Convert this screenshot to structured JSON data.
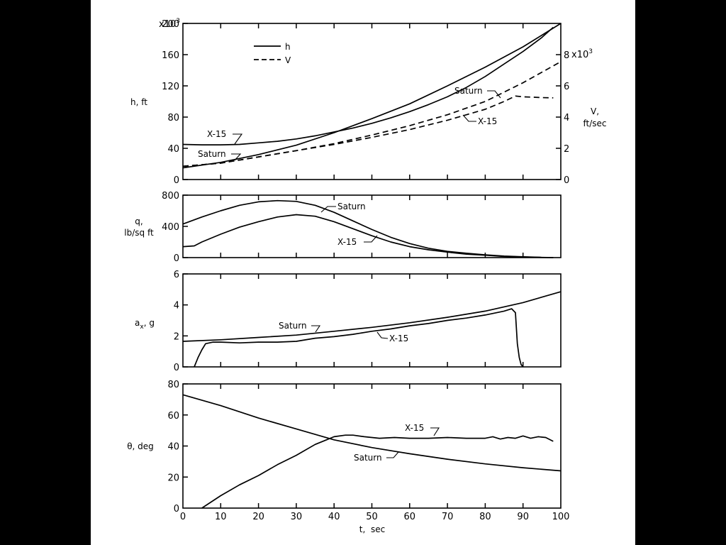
{
  "chart_data": [
    {
      "type": "line",
      "panel": "h-V",
      "ylabel": "h, ft",
      "ylabel_right": [
        "V,",
        "ft/sec"
      ],
      "xlim": [
        0,
        100
      ],
      "ylim": [
        0,
        200000
      ],
      "yticks": [
        0,
        40,
        80,
        120,
        160,
        200
      ],
      "ytick_exponent": "x10",
      "ytick_exponent_sup": "3",
      "ylim_right": [
        0,
        10000
      ],
      "yticks_right": [
        0,
        2,
        4,
        6,
        8
      ],
      "ytick_right_exponent": "x10",
      "ytick_right_exponent_sup": "3",
      "legend": [
        {
          "label": "h",
          "style": "solid"
        },
        {
          "label": "V",
          "style": "dashed"
        }
      ],
      "series": [
        {
          "name": "Saturn",
          "variable": "h",
          "axis": "left",
          "style": "solid",
          "x": [
            0,
            10,
            20,
            30,
            40,
            50,
            60,
            70,
            80,
            90,
            100
          ],
          "y": [
            15000,
            22000,
            32000,
            44000,
            60000,
            78000,
            97000,
            120000,
            144000,
            170000,
            200000
          ]
        },
        {
          "name": "X-15",
          "variable": "h",
          "axis": "left",
          "style": "solid",
          "x": [
            0,
            5,
            10,
            15,
            20,
            25,
            30,
            35,
            40,
            45,
            50,
            55,
            60,
            65,
            70,
            75,
            80,
            85,
            90,
            95,
            98
          ],
          "y": [
            45000,
            44500,
            44500,
            45000,
            47000,
            49000,
            52000,
            56000,
            61000,
            66000,
            72000,
            79000,
            87000,
            96000,
            106000,
            118000,
            132000,
            148000,
            164000,
            182000,
            195000
          ]
        },
        {
          "name": "Saturn",
          "variable": "V",
          "axis": "right",
          "style": "dashed",
          "x": [
            0,
            10,
            20,
            30,
            40,
            50,
            60,
            70,
            80,
            90,
            100
          ],
          "y": [
            850,
            1050,
            1450,
            1850,
            2300,
            2850,
            3450,
            4150,
            5000,
            6200,
            7550
          ]
        },
        {
          "name": "X-15",
          "variable": "V",
          "axis": "right",
          "style": "dashed",
          "x": [
            0,
            10,
            20,
            30,
            40,
            50,
            60,
            70,
            80,
            85,
            88,
            90,
            95,
            98
          ],
          "y": [
            850,
            1050,
            1450,
            1850,
            2250,
            2700,
            3200,
            3800,
            4500,
            5000,
            5350,
            5300,
            5250,
            5230
          ]
        }
      ],
      "annotations": [
        {
          "text": "X-15",
          "target": "X-15 h"
        },
        {
          "text": "Saturn",
          "target": "Saturn h"
        },
        {
          "text": "Saturn",
          "target": "Saturn V"
        },
        {
          "text": "X-15",
          "target": "X-15 V"
        }
      ]
    },
    {
      "type": "line",
      "panel": "q",
      "ylabel": [
        "q,",
        "lb/sq ft"
      ],
      "xlim": [
        0,
        100
      ],
      "ylim": [
        0,
        800
      ],
      "yticks": [
        0,
        400,
        800
      ],
      "series": [
        {
          "name": "Saturn",
          "x": [
            0,
            5,
            10,
            15,
            20,
            25,
            30,
            35,
            40,
            45,
            50,
            55,
            60,
            65,
            70,
            75,
            80,
            85,
            90,
            95,
            98
          ],
          "y": [
            430,
            520,
            600,
            670,
            715,
            730,
            720,
            670,
            580,
            470,
            360,
            260,
            180,
            120,
            80,
            55,
            35,
            20,
            10,
            3,
            0
          ]
        },
        {
          "name": "X-15",
          "x": [
            0,
            3,
            5,
            10,
            15,
            20,
            25,
            30,
            35,
            40,
            45,
            50,
            55,
            60,
            65,
            70,
            75,
            80,
            85,
            90,
            95,
            98
          ],
          "y": [
            140,
            150,
            200,
            300,
            390,
            460,
            520,
            550,
            530,
            460,
            370,
            280,
            200,
            140,
            100,
            70,
            45,
            30,
            15,
            8,
            2,
            0
          ]
        }
      ],
      "annotations": [
        {
          "text": "Saturn",
          "target": "Saturn"
        },
        {
          "text": "X-15",
          "target": "X-15"
        }
      ]
    },
    {
      "type": "line",
      "panel": "a_x",
      "ylabel": "a",
      "ylabel_sub": "x",
      "ylabel_suffix": ", g",
      "xlim": [
        0,
        100
      ],
      "ylim": [
        0,
        6
      ],
      "yticks": [
        0,
        2,
        4,
        6
      ],
      "series": [
        {
          "name": "Saturn",
          "x": [
            0,
            10,
            20,
            30,
            40,
            50,
            60,
            70,
            80,
            90,
            100
          ],
          "y": [
            1.65,
            1.75,
            1.9,
            2.05,
            2.3,
            2.55,
            2.85,
            3.2,
            3.6,
            4.15,
            4.85
          ]
        },
        {
          "name": "X-15",
          "x": [
            3,
            4,
            5,
            6,
            8,
            10,
            15,
            20,
            25,
            30,
            35,
            40,
            45,
            50,
            55,
            60,
            65,
            70,
            75,
            80,
            85,
            87,
            88,
            88.5,
            89,
            89.5,
            90
          ],
          "y": [
            0,
            0.6,
            1.1,
            1.5,
            1.6,
            1.6,
            1.55,
            1.6,
            1.6,
            1.65,
            1.85,
            1.95,
            2.1,
            2.3,
            2.45,
            2.65,
            2.8,
            3.0,
            3.15,
            3.35,
            3.6,
            3.75,
            3.5,
            1.5,
            0.6,
            0.15,
            0
          ]
        }
      ],
      "annotations": [
        {
          "text": "Saturn",
          "target": "Saturn"
        },
        {
          "text": "X-15",
          "target": "X-15"
        }
      ]
    },
    {
      "type": "line",
      "panel": "theta",
      "ylabel": "θ, deg",
      "xlabel": "t,  sec",
      "xlim": [
        0,
        100
      ],
      "ylim": [
        0,
        80
      ],
      "yticks": [
        20,
        40,
        60,
        80
      ],
      "xticks": [
        0,
        10,
        20,
        30,
        40,
        50,
        60,
        70,
        80,
        90,
        100
      ],
      "series": [
        {
          "name": "Saturn",
          "x": [
            0,
            10,
            20,
            30,
            40,
            50,
            60,
            70,
            80,
            90,
            100
          ],
          "y": [
            73,
            66,
            58,
            51,
            44,
            39,
            35,
            31.5,
            28.5,
            26,
            24
          ]
        },
        {
          "name": "X-15",
          "x": [
            5,
            10,
            15,
            20,
            25,
            30,
            35,
            38,
            40,
            43,
            45,
            48,
            52,
            56,
            60,
            65,
            70,
            75,
            80,
            82,
            84,
            86,
            88,
            90,
            92,
            94,
            96,
            98
          ],
          "y": [
            0,
            8,
            15,
            21,
            28,
            34,
            41,
            44,
            46,
            47,
            47,
            46,
            45,
            45.5,
            45,
            45,
            45.5,
            45,
            45,
            46,
            44.5,
            45.5,
            45,
            46.5,
            45,
            46,
            45.5,
            43
          ]
        }
      ],
      "annotations": [
        {
          "text": "X-15",
          "target": "X-15"
        },
        {
          "text": "Saturn",
          "target": "Saturn"
        }
      ]
    }
  ]
}
